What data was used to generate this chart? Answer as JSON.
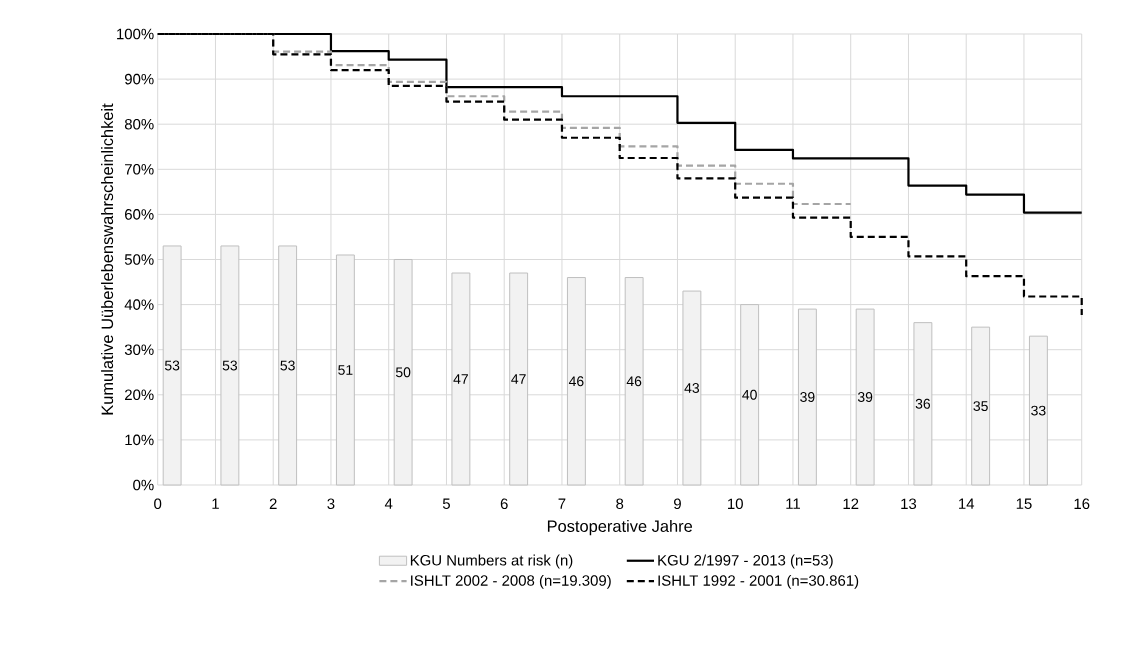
{
  "chart_data": {
    "type": "step",
    "xlabel": "Postoperative Jahre",
    "ylabel": "Kumulative Uüberlebenswahrscheinlichkeit",
    "xlim": [
      0,
      16
    ],
    "xticks": [
      0,
      1,
      2,
      3,
      4,
      5,
      6,
      7,
      8,
      9,
      10,
      11,
      12,
      13,
      14,
      15,
      16
    ],
    "ylim": [
      0,
      100
    ],
    "yticks": [
      {
        "value": 0,
        "label": "0%"
      },
      {
        "value": 10,
        "label": "10%"
      },
      {
        "value": 20,
        "label": "20%"
      },
      {
        "value": 30,
        "label": "30%"
      },
      {
        "value": 40,
        "label": "40%"
      },
      {
        "value": 50,
        "label": "50%"
      },
      {
        "value": 60,
        "label": "60%"
      },
      {
        "value": 70,
        "label": "70%"
      },
      {
        "value": 80,
        "label": "80%"
      },
      {
        "value": 90,
        "label": "90%"
      },
      {
        "value": 100,
        "label": "100%"
      }
    ],
    "grid": true,
    "legend": "bottom",
    "marker": "none",
    "series": [
      {
        "name": "KGU Numbers at risk (n)",
        "type": "bar",
        "color": "#f2f2f2",
        "x": [
          0.25,
          1.25,
          2.25,
          3.25,
          4.25,
          5.25,
          6.25,
          7.25,
          8.25,
          9.25,
          10.25,
          11.25,
          12.25,
          13.25,
          14.25,
          15.25
        ],
        "values": [
          53,
          53,
          53,
          51,
          50,
          47,
          47,
          46,
          46,
          43,
          40,
          39,
          39,
          36,
          35,
          33
        ],
        "value_labels": [
          "53",
          "53",
          "53",
          "51",
          "50",
          "47",
          "47",
          "46",
          "46",
          "43",
          "40",
          "39",
          "39",
          "36",
          "35",
          "33"
        ]
      },
      {
        "name": "KGU 2/1997 - 2013 (n=53)",
        "color": "#000000",
        "line_style": "solid",
        "x": [
          0,
          3,
          4,
          5,
          7,
          9,
          10,
          11,
          13,
          14,
          15,
          16
        ],
        "values": [
          100,
          96.2,
          94.3,
          88.2,
          86.2,
          80.3,
          74.3,
          72.4,
          66.4,
          64.4,
          60.4,
          60.4
        ]
      },
      {
        "name": "ISHLT 2002 - 2008 (n=19.309)",
        "color": "#a5a5a5",
        "line_style": "dashed",
        "x": [
          0,
          2,
          3,
          4,
          5,
          6,
          7,
          8,
          9,
          10,
          11,
          12
        ],
        "values": [
          100,
          96.1,
          93.1,
          89.4,
          86.2,
          82.8,
          79.2,
          75.1,
          70.8,
          66.8,
          62.3,
          62.3
        ]
      },
      {
        "name": "ISHLT 1992 - 2001 (n=30.861)",
        "color": "#000000",
        "line_style": "dashed",
        "x": [
          0,
          2,
          3,
          4,
          5,
          6,
          7,
          8,
          9,
          10,
          11,
          12,
          13,
          14,
          15,
          16
        ],
        "values": [
          100,
          95.5,
          92,
          88.5,
          85,
          81,
          77,
          72.5,
          68,
          63.7,
          59.3,
          55,
          50.7,
          46.3,
          41.8,
          37.7
        ]
      }
    ]
  }
}
